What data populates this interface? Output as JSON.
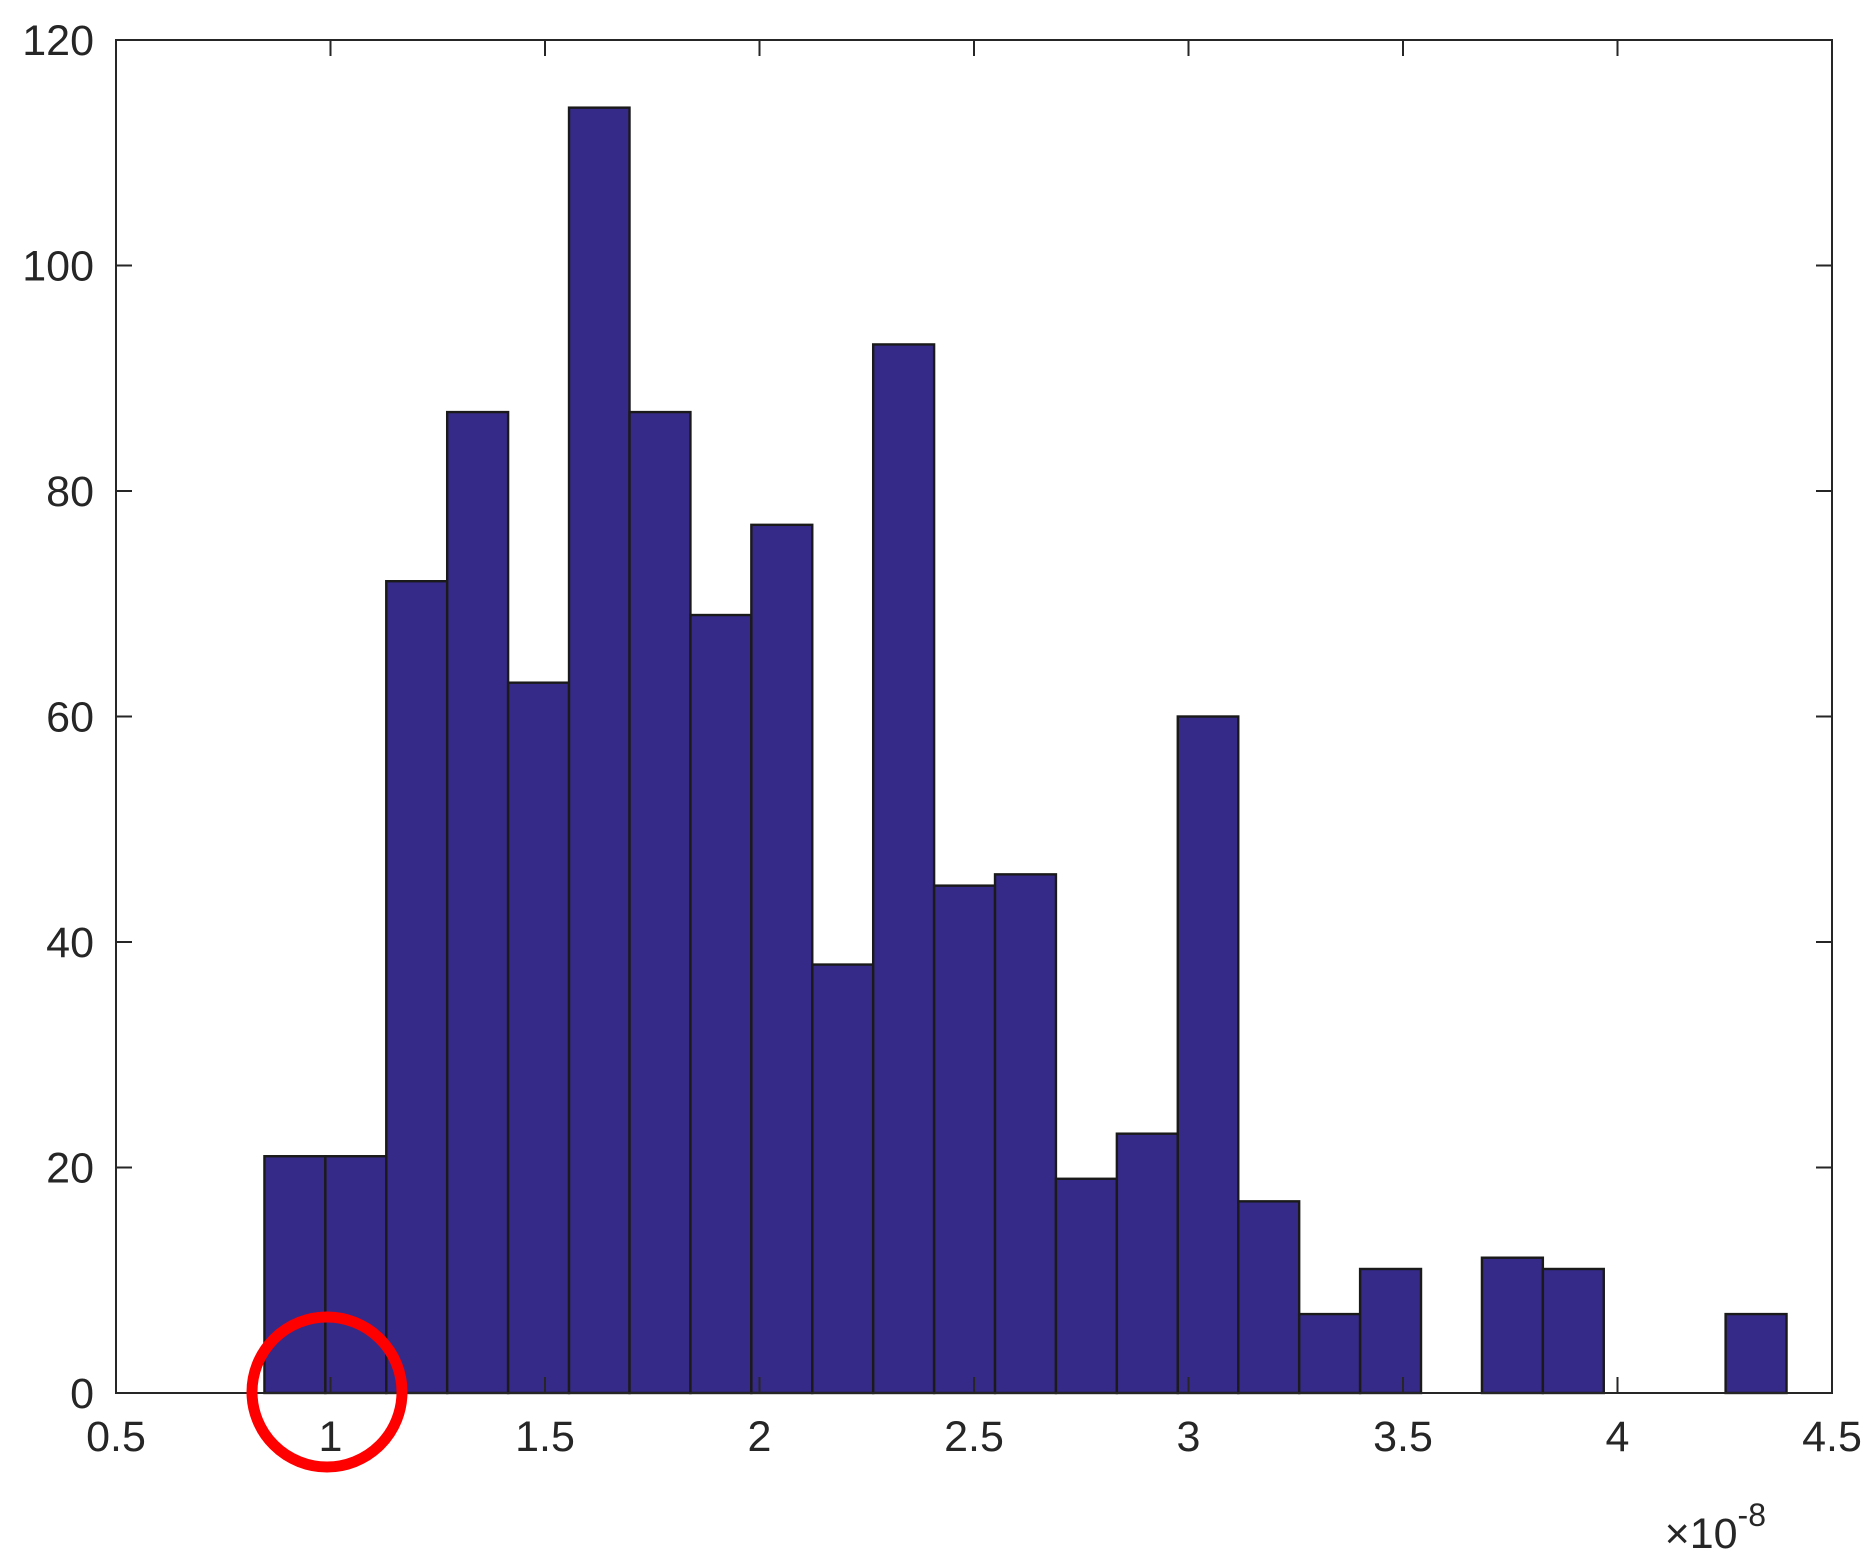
{
  "chart_data": {
    "type": "histogram",
    "bins": [
      0.846,
      0.988,
      1.13,
      1.272,
      1.414,
      1.556,
      1.697,
      1.839,
      1.981,
      2.123,
      2.265,
      2.407,
      2.549,
      2.691,
      2.833,
      2.975,
      3.116,
      3.258,
      3.4,
      3.542,
      3.684,
      3.826,
      3.968,
      4.11,
      4.252,
      4.394
    ],
    "values": [
      21,
      21,
      72,
      87,
      63,
      114,
      87,
      69,
      77,
      38,
      93,
      45,
      46,
      19,
      23,
      60,
      17,
      7,
      11,
      0,
      12,
      11,
      0,
      0,
      7
    ],
    "color": "#352a87",
    "xlim": [
      0.5,
      4.5
    ],
    "xticks": [
      0.5,
      1,
      1.5,
      2,
      2.5,
      3,
      3.5,
      4,
      4.5
    ],
    "ylim": [
      0,
      120
    ],
    "yticks": [
      0,
      20,
      40,
      60,
      80,
      100,
      120
    ],
    "x_multiplier": {
      "base": "×10",
      "exponent": "-8"
    },
    "grid": false
  }
}
